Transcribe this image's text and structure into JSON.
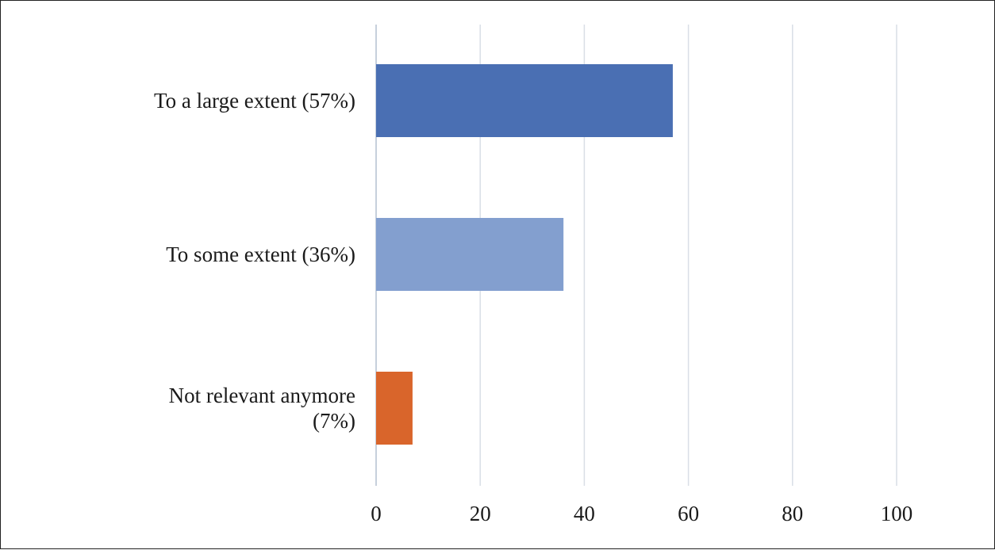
{
  "chart_data": {
    "type": "bar",
    "orientation": "horizontal",
    "title": "",
    "xlabel": "",
    "ylabel": "",
    "categories": [
      [
        "To a large extent (57%)"
      ],
      [
        "To some extent (36%)"
      ],
      [
        "Not relevant anymore",
        "(7%)"
      ]
    ],
    "values": [
      57,
      36,
      7
    ],
    "colors": [
      "#4a6fb3",
      "#839fcf",
      "#d9652b"
    ],
    "xlim": [
      0,
      100
    ],
    "xticks": [
      "0",
      "20",
      "40",
      "60",
      "80",
      "100"
    ],
    "grid": true,
    "legend": "none"
  }
}
